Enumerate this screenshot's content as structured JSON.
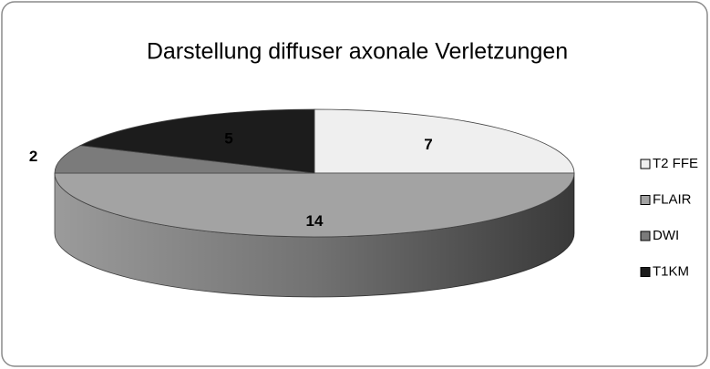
{
  "chart_data": {
    "type": "pie",
    "title": "Darstellung diffuser axonale Verletzungen",
    "categories": [
      "T2 FFE",
      "FLAIR",
      "DWI",
      "T1KM"
    ],
    "values": [
      7,
      14,
      2,
      5
    ],
    "colors": [
      "#efefef",
      "#a3a3a3",
      "#7b7b7b",
      "#1c1c1c"
    ]
  }
}
